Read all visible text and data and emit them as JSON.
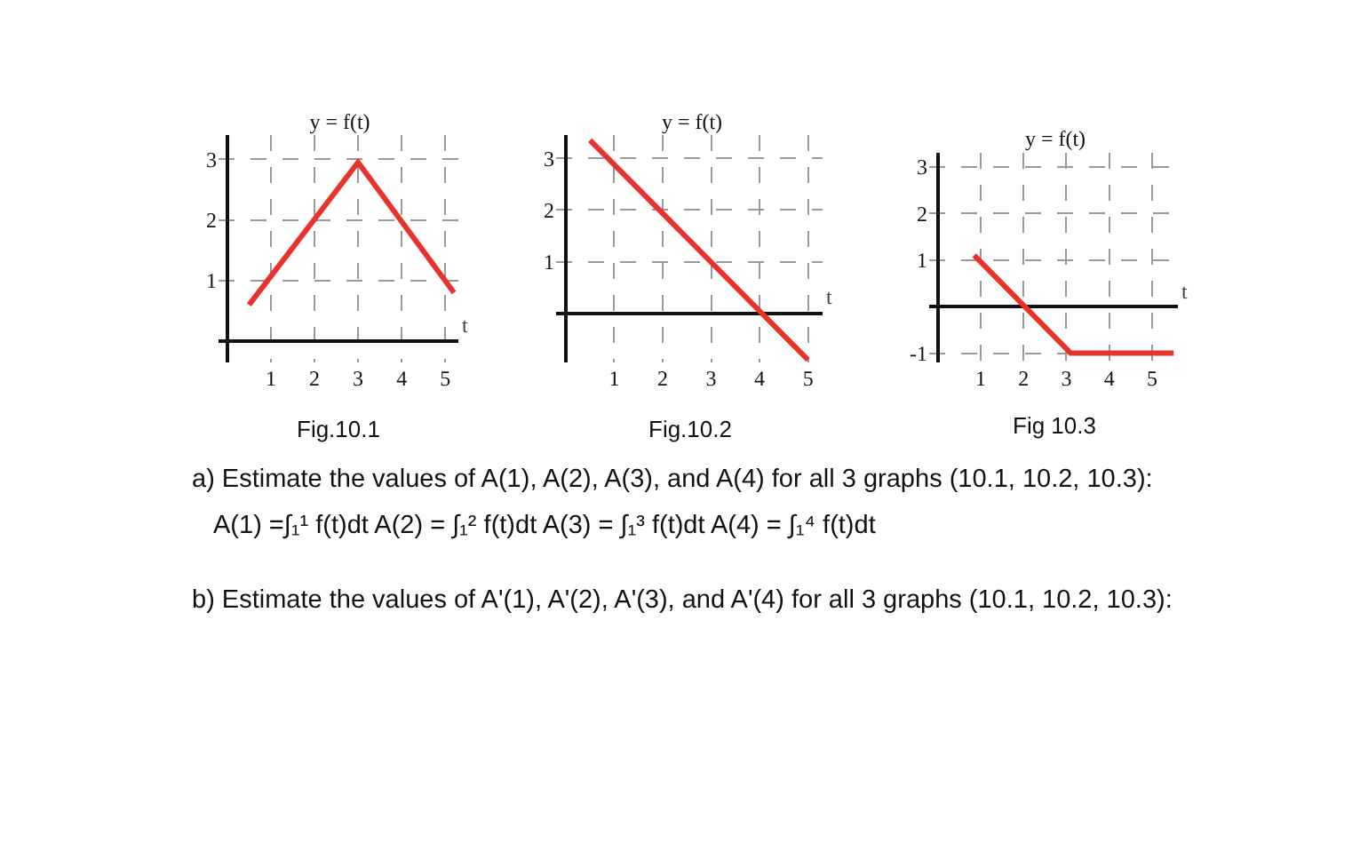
{
  "chart_data": [
    {
      "type": "line",
      "title": "y = f(t)",
      "xlabel": "t",
      "xlim": [
        -0.2,
        5.3
      ],
      "ylim": [
        -0.35,
        3.4
      ],
      "xticks": [
        1,
        2,
        3,
        4,
        5
      ],
      "yticks": [
        1,
        2,
        3
      ],
      "grid": true,
      "line_style": "solid",
      "annotations": [
        "Fig.10.1"
      ],
      "series": [
        {
          "color": "#e8322b",
          "x": [
            0.5,
            3,
            5.2
          ],
          "values": [
            0.6,
            2.95,
            0.8
          ]
        }
      ]
    },
    {
      "type": "line",
      "title": "y = f(t)",
      "xlabel": "t",
      "xlim": [
        -0.2,
        5.3
      ],
      "ylim": [
        -0.95,
        3.45
      ],
      "xticks": [
        1,
        2,
        3,
        4,
        5
      ],
      "yticks": [
        1,
        2,
        3
      ],
      "grid": true,
      "line_style": "solid",
      "annotations": [
        "Fig.10.2"
      ],
      "series": [
        {
          "color": "#e8322b",
          "x": [
            0.5,
            5
          ],
          "values": [
            3.35,
            -0.9
          ]
        }
      ]
    },
    {
      "type": "line",
      "title": "y = f(t)",
      "xlabel": "t",
      "xlim": [
        -0.2,
        5.6
      ],
      "ylim": [
        -1.2,
        3.3
      ],
      "xticks": [
        1,
        2,
        3,
        4,
        5
      ],
      "yticks": [
        -1,
        1,
        2,
        3
      ],
      "grid": true,
      "line_style": "solid",
      "annotations": [
        "Fig 10.3"
      ],
      "series": [
        {
          "color": "#e8322b",
          "x": [
            0.85,
            3.1,
            5.5
          ],
          "values": [
            1.1,
            -1,
            -1
          ]
        }
      ]
    },
    {
      "type": "other",
      "annotations": [
        "a) Estimate the values of A(1), A(2), A(3), and A(4) for all 3 graphs (10.1, 10.2, 10.3):",
        "A(1) =∫₁¹ f(t)dt  A(2) = ∫₁² f(t)dt  A(3) = ∫₁³ f(t)dt  A(4) = ∫₁⁴ f(t)dt",
        "b) Estimate the values of A'(1), A'(2), A'(3), and A'(4) for all 3 graphs (10.1, 10.2, 10.3):"
      ]
    }
  ]
}
